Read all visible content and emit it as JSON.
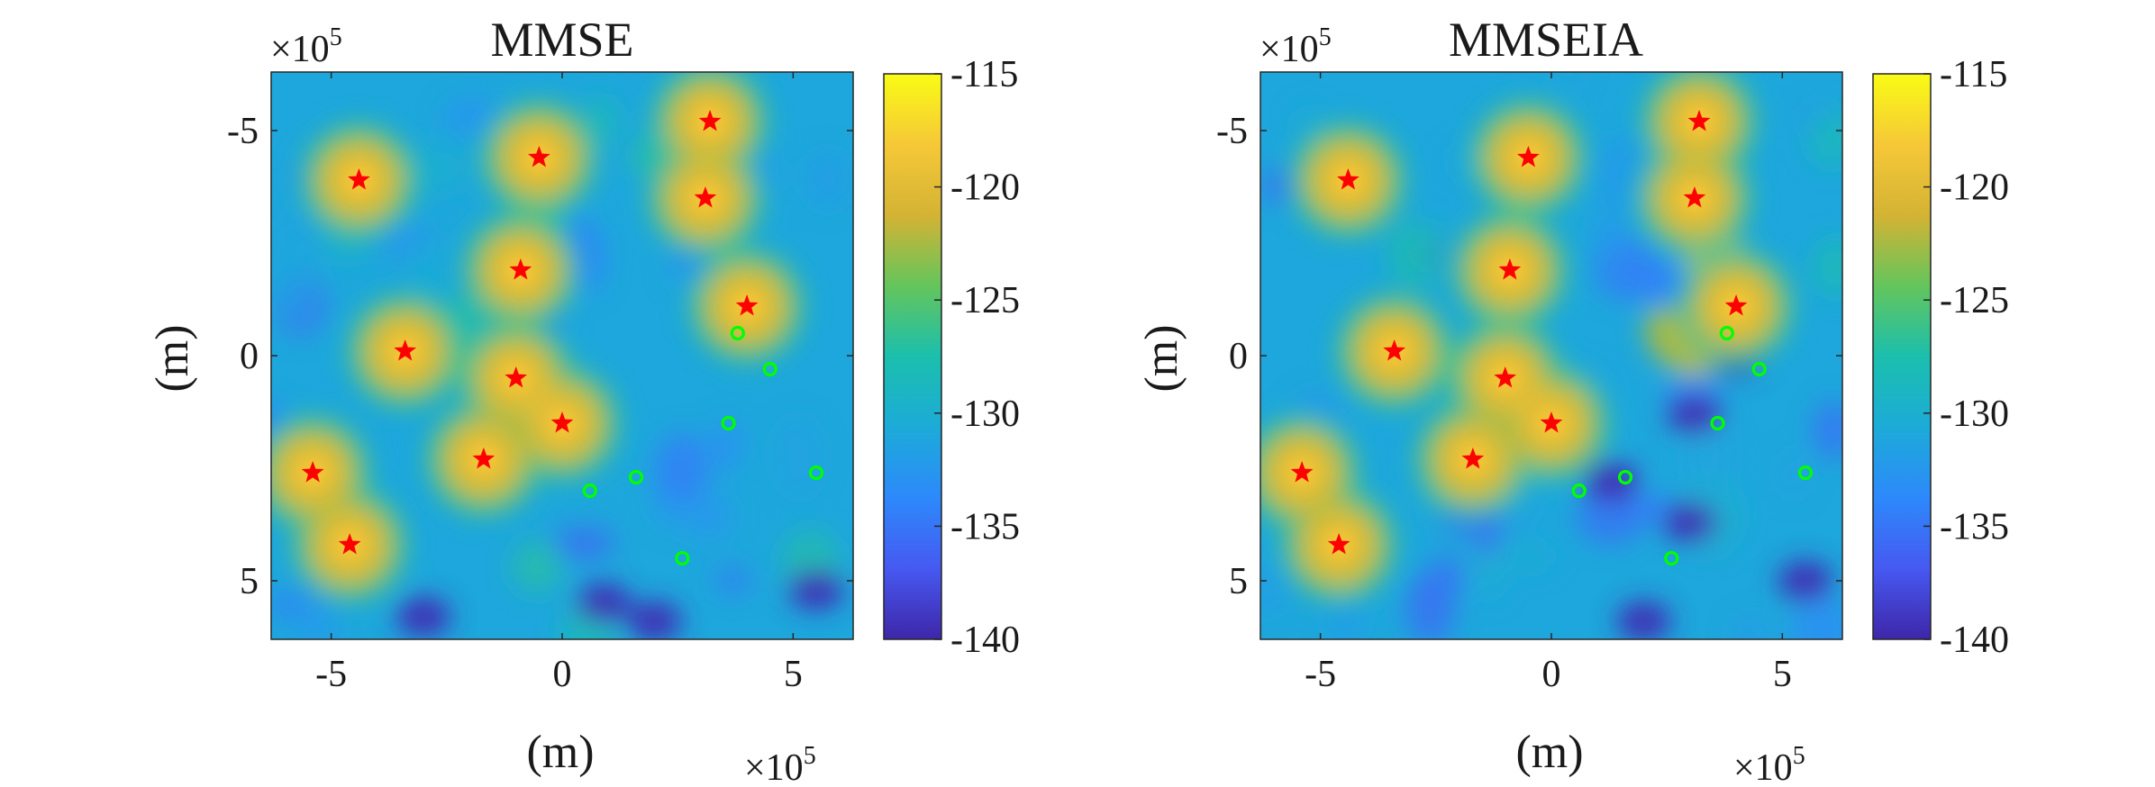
{
  "chart_data": [
    {
      "type": "heatmap",
      "title": "MMSE",
      "xlabel": "(m)",
      "ylabel": "(m)",
      "x_multiplier": "×10",
      "x_multiplier_exp": "5",
      "y_multiplier": "×10",
      "y_multiplier_exp": "5",
      "xlim": [
        -6.3,
        6.3
      ],
      "ylim": [
        6.3,
        -6.3
      ],
      "y_reversed": true,
      "xticks": [
        {
          "value": -5,
          "label": "-5"
        },
        {
          "value": 0,
          "label": "0"
        },
        {
          "value": 5,
          "label": "5"
        }
      ],
      "yticks": [
        {
          "value": -5,
          "label": "-5"
        },
        {
          "value": 0,
          "label": "0"
        },
        {
          "value": 5,
          "label": "5"
        }
      ],
      "colormap": "parula",
      "clim": [
        -140,
        -115
      ],
      "colorbar_ticks": [
        {
          "value": -115,
          "label": "-115"
        },
        {
          "value": -120,
          "label": "-120"
        },
        {
          "value": -125,
          "label": "-125"
        },
        {
          "value": -130,
          "label": "-130"
        },
        {
          "value": -135,
          "label": "-135"
        },
        {
          "value": -140,
          "label": "-140"
        }
      ],
      "background_level": -131,
      "hotspots": [
        {
          "x": -4.4,
          "y": -3.9,
          "level": -119.5
        },
        {
          "x": -0.5,
          "y": -4.4,
          "level": -119.5
        },
        {
          "x": 3.2,
          "y": -5.2,
          "level": -119.5
        },
        {
          "x": 3.1,
          "y": -3.5,
          "level": -119.5
        },
        {
          "x": -0.9,
          "y": -1.9,
          "level": -119.5
        },
        {
          "x": 4.0,
          "y": -1.1,
          "level": -119.5
        },
        {
          "x": -3.4,
          "y": -0.1,
          "level": -119.5
        },
        {
          "x": -1.0,
          "y": 0.5,
          "level": -119.5
        },
        {
          "x": 0.0,
          "y": 1.5,
          "level": -119.5
        },
        {
          "x": -1.7,
          "y": 2.3,
          "level": -119.5
        },
        {
          "x": -5.4,
          "y": 2.6,
          "level": -119.5
        },
        {
          "x": -4.6,
          "y": 4.2,
          "level": -119.5
        }
      ],
      "ridges": [],
      "nulls": [
        {
          "x": 2.0,
          "y": 5.9
        },
        {
          "x": 0.9,
          "y": 5.5
        },
        {
          "x": 5.5,
          "y": 5.2
        },
        {
          "x": -3.0,
          "y": 5.8
        }
      ],
      "series": [
        {
          "marker": "star",
          "color": "#ff0000",
          "points": [
            {
              "x": -4.4,
              "y": -3.9
            },
            {
              "x": -0.5,
              "y": -4.4
            },
            {
              "x": 3.2,
              "y": -5.2
            },
            {
              "x": 3.1,
              "y": -3.5
            },
            {
              "x": -0.9,
              "y": -1.9
            },
            {
              "x": 4.0,
              "y": -1.1
            },
            {
              "x": -3.4,
              "y": -0.1
            },
            {
              "x": -1.0,
              "y": 0.5
            },
            {
              "x": 0.0,
              "y": 1.5
            },
            {
              "x": -1.7,
              "y": 2.3
            },
            {
              "x": -5.4,
              "y": 2.6
            },
            {
              "x": -4.6,
              "y": 4.2
            }
          ]
        },
        {
          "marker": "circle",
          "color": "#00ff00",
          "points": [
            {
              "x": 3.8,
              "y": -0.5
            },
            {
              "x": 4.5,
              "y": 0.3
            },
            {
              "x": 3.6,
              "y": 1.5
            },
            {
              "x": 0.6,
              "y": 3.0
            },
            {
              "x": 1.6,
              "y": 2.7
            },
            {
              "x": 5.5,
              "y": 2.6
            },
            {
              "x": 2.6,
              "y": 4.5
            }
          ]
        }
      ]
    },
    {
      "type": "heatmap",
      "title": "MMSEIA",
      "xlabel": "(m)",
      "ylabel": "(m)",
      "x_multiplier": "×10",
      "x_multiplier_exp": "5",
      "y_multiplier": "×10",
      "y_multiplier_exp": "5",
      "xlim": [
        -6.3,
        6.3
      ],
      "ylim": [
        6.3,
        -6.3
      ],
      "y_reversed": true,
      "xticks": [
        {
          "value": -5,
          "label": "-5"
        },
        {
          "value": 0,
          "label": "0"
        },
        {
          "value": 5,
          "label": "5"
        }
      ],
      "yticks": [
        {
          "value": -5,
          "label": "-5"
        },
        {
          "value": 0,
          "label": "0"
        },
        {
          "value": 5,
          "label": "5"
        }
      ],
      "colormap": "parula",
      "clim": [
        -140,
        -115
      ],
      "colorbar_ticks": [
        {
          "value": -115,
          "label": "-115"
        },
        {
          "value": -120,
          "label": "-120"
        },
        {
          "value": -125,
          "label": "-125"
        },
        {
          "value": -130,
          "label": "-130"
        },
        {
          "value": -135,
          "label": "-135"
        },
        {
          "value": -140,
          "label": "-140"
        }
      ],
      "background_level": -131,
      "hotspots": [
        {
          "x": -4.4,
          "y": -3.9,
          "level": -119.5
        },
        {
          "x": -0.5,
          "y": -4.4,
          "level": -119.5
        },
        {
          "x": 3.2,
          "y": -5.2,
          "level": -119.5
        },
        {
          "x": 3.1,
          "y": -3.5,
          "level": -119.5
        },
        {
          "x": -0.9,
          "y": -1.9,
          "level": -119.5
        },
        {
          "x": 4.0,
          "y": -1.1,
          "level": -119.5
        },
        {
          "x": -3.4,
          "y": -0.1,
          "level": -119.5
        },
        {
          "x": -1.0,
          "y": 0.5,
          "level": -119.5
        },
        {
          "x": 0.0,
          "y": 1.5,
          "level": -119.5
        },
        {
          "x": -1.7,
          "y": 2.3,
          "level": -119.5
        },
        {
          "x": -5.4,
          "y": 2.6,
          "level": -119.5
        },
        {
          "x": -4.6,
          "y": 4.2,
          "level": -119.5
        }
      ],
      "ridges": [
        {
          "x": 3.7,
          "y": -2.0,
          "level": -118.5
        },
        {
          "x": 4.4,
          "y": -1.5,
          "level": -121
        },
        {
          "x": 2.8,
          "y": -0.3,
          "level": -122.5
        }
      ],
      "nulls": [
        {
          "x": 1.3,
          "y": 2.8
        },
        {
          "x": 4.0,
          "y": 0.0
        },
        {
          "x": 3.1,
          "y": 1.3
        },
        {
          "x": 2.0,
          "y": 5.9
        },
        {
          "x": 5.5,
          "y": 5.0
        },
        {
          "x": 3.0,
          "y": 3.7
        }
      ],
      "series": [
        {
          "marker": "star",
          "color": "#ff0000",
          "points": [
            {
              "x": -4.4,
              "y": -3.9
            },
            {
              "x": -0.5,
              "y": -4.4
            },
            {
              "x": 3.2,
              "y": -5.2
            },
            {
              "x": 3.1,
              "y": -3.5
            },
            {
              "x": -0.9,
              "y": -1.9
            },
            {
              "x": 4.0,
              "y": -1.1
            },
            {
              "x": -3.4,
              "y": -0.1
            },
            {
              "x": -1.0,
              "y": 0.5
            },
            {
              "x": 0.0,
              "y": 1.5
            },
            {
              "x": -1.7,
              "y": 2.3
            },
            {
              "x": -5.4,
              "y": 2.6
            },
            {
              "x": -4.6,
              "y": 4.2
            }
          ]
        },
        {
          "marker": "circle",
          "color": "#00ff00",
          "points": [
            {
              "x": 3.8,
              "y": -0.5
            },
            {
              "x": 4.5,
              "y": 0.3
            },
            {
              "x": 3.6,
              "y": 1.5
            },
            {
              "x": 0.6,
              "y": 3.0
            },
            {
              "x": 1.6,
              "y": 2.7
            },
            {
              "x": 5.5,
              "y": 2.6
            },
            {
              "x": 2.6,
              "y": 4.5
            }
          ]
        }
      ]
    }
  ]
}
